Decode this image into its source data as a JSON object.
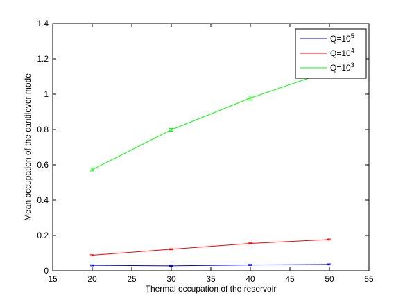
{
  "chart_data": {
    "type": "line",
    "title": "",
    "xlabel": "Thermal occupation of the reservoir",
    "ylabel": "Mean occupation of the cantilever mode",
    "xlim": [
      15,
      55
    ],
    "ylim": [
      0,
      1.4
    ],
    "xticks": [
      "15",
      "20",
      "25",
      "30",
      "35",
      "40",
      "45",
      "50",
      "55"
    ],
    "yticks": [
      "0",
      "0.2",
      "0.4",
      "0.6",
      "0.8",
      "1",
      "1.2",
      "1.4"
    ],
    "grid": false,
    "legend_position": "top-right",
    "x": [
      20,
      30,
      40,
      50
    ],
    "series": [
      {
        "name": "Q=10",
        "exponent": "5",
        "color": "#0000ff",
        "values": [
          0.031,
          0.028,
          0.033,
          0.036
        ],
        "errors": [
          0.003,
          0.003,
          0.003,
          0.003
        ]
      },
      {
        "name": "Q=10",
        "exponent": "4",
        "color": "#ff0000",
        "values": [
          0.088,
          0.122,
          0.155,
          0.177
        ],
        "errors": [
          0.003,
          0.003,
          0.003,
          0.003
        ]
      },
      {
        "name": "Q=10",
        "exponent": "3",
        "color": "#00ff00",
        "values": [
          0.573,
          0.798,
          0.978,
          1.13
        ],
        "errors": [
          0.008,
          0.008,
          0.012,
          0.012
        ]
      }
    ]
  }
}
